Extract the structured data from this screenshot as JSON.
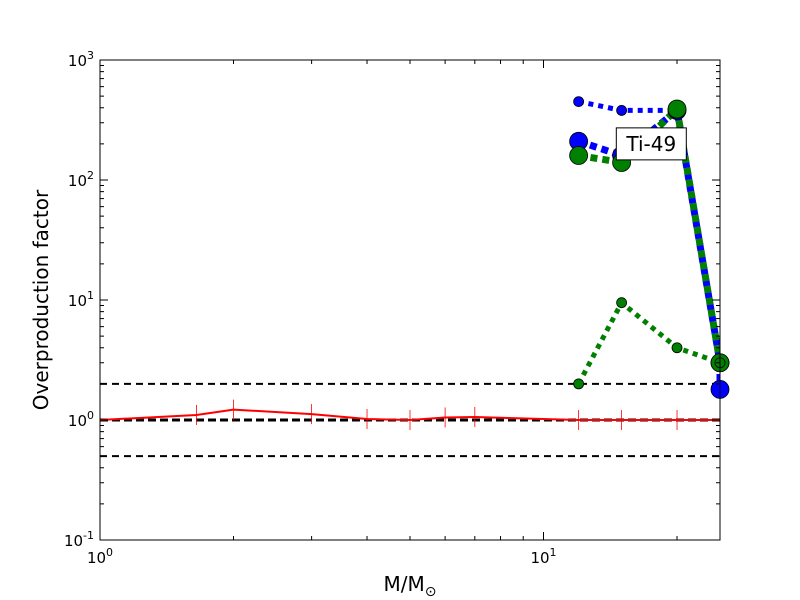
{
  "chart_data": {
    "type": "line",
    "xlabel": "M/M",
    "xlabel_sub": "⊙",
    "ylabel": "Overproduction factor",
    "xscale": "log",
    "yscale": "log",
    "xlim": [
      1,
      25
    ],
    "ylim": [
      0.1,
      1000
    ],
    "x_ticks": [
      {
        "value": 1,
        "base": "10",
        "exp": "0"
      },
      {
        "value": 10,
        "base": "10",
        "exp": "1"
      }
    ],
    "y_ticks": [
      {
        "value": 0.1,
        "base": "10",
        "exp": "-1"
      },
      {
        "value": 1,
        "base": "10",
        "exp": "0"
      },
      {
        "value": 10,
        "base": "10",
        "exp": "1"
      },
      {
        "value": 100,
        "base": "10",
        "exp": "2"
      },
      {
        "value": 1000,
        "base": "10",
        "exp": "3"
      }
    ],
    "reference_lines": [
      {
        "y": 2,
        "style": "dashed",
        "color": "#000000",
        "weight": "thin"
      },
      {
        "y": 1,
        "style": "dashed",
        "color": "#000000",
        "weight": "thick"
      },
      {
        "y": 0.5,
        "style": "dashed",
        "color": "#000000",
        "weight": "thin"
      }
    ],
    "annotation": {
      "text": "Ti-49",
      "x": 17.5,
      "y": 200
    },
    "series": [
      {
        "color": "#ff0000",
        "style": "solid",
        "marker": "vline",
        "x": [
          1,
          1.65,
          2,
          3,
          4,
          5,
          6,
          7,
          12,
          15,
          20,
          25
        ],
        "y": [
          1.0,
          1.1,
          1.22,
          1.12,
          1.02,
          1.0,
          1.05,
          1.06,
          1.0,
          1.0,
          1.0,
          1.0
        ]
      },
      {
        "color": "#0000ff",
        "style": "dotted",
        "marker": "circle",
        "marker_size": "small",
        "x": [
          12,
          15,
          20
        ],
        "y": [
          450,
          380,
          380
        ]
      },
      {
        "color": "#0000ff",
        "style": "dotted-thick",
        "marker": "circle",
        "marker_size": "large",
        "x": [
          12,
          15,
          20,
          25,
          25
        ],
        "y": [
          210,
          160,
          380,
          3.0,
          1.8
        ]
      },
      {
        "color": "#008000",
        "style": "dotted-thick",
        "marker": "circle",
        "marker_size": "large",
        "x": [
          12,
          15,
          20,
          25
        ],
        "y": [
          160,
          140,
          390,
          3.0
        ]
      },
      {
        "color": "#008000",
        "style": "dotted",
        "marker": "circle",
        "marker_size": "small",
        "x": [
          12,
          15,
          20,
          25
        ],
        "y": [
          2.0,
          9.5,
          4.0,
          3.0
        ]
      }
    ]
  }
}
